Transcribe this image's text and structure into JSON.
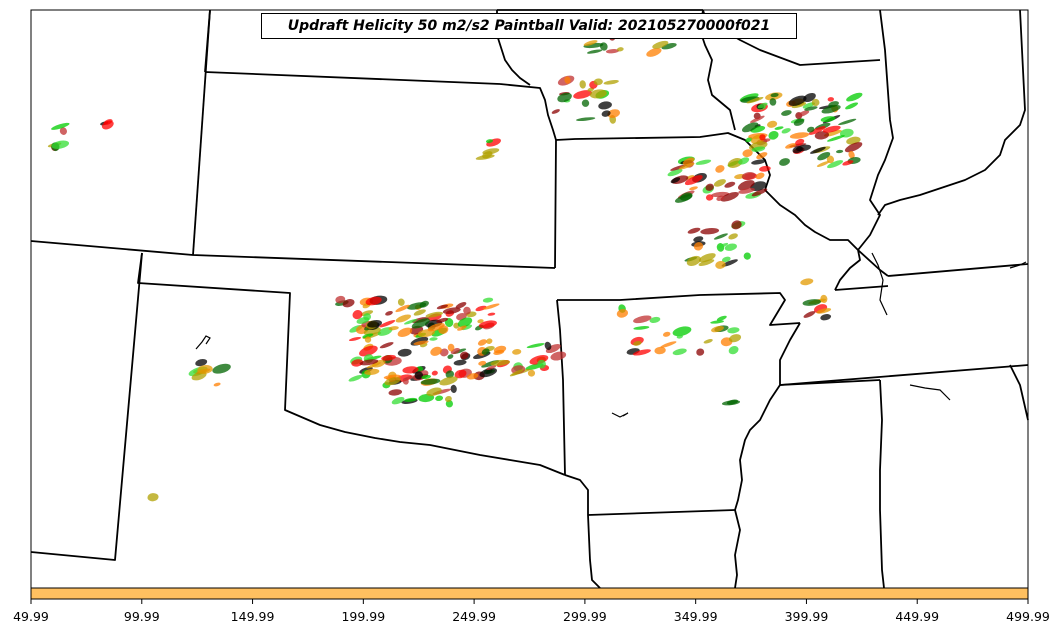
{
  "title": "Updraft Helicity 50 m2/s2 Paintball Valid: 202105270000f021",
  "x_axis": {
    "ticks": [
      {
        "value": 49.99,
        "label": "49.99"
      },
      {
        "value": 99.99,
        "label": "99.99"
      },
      {
        "value": 149.99,
        "label": "149.99"
      },
      {
        "value": 199.99,
        "label": "199.99"
      },
      {
        "value": 249.99,
        "label": "249.99"
      },
      {
        "value": 299.99,
        "label": "299.99"
      },
      {
        "value": 349.99,
        "label": "349.99"
      },
      {
        "value": 399.99,
        "label": "399.99"
      },
      {
        "value": 449.99,
        "label": "449.99"
      },
      {
        "value": 499.99,
        "label": "499.99"
      }
    ],
    "range": [
      49.99,
      499.99
    ]
  },
  "colorbar_color": "#ffc060",
  "paintball_colors": [
    "#ff0000",
    "#ff7f00",
    "#00cc00",
    "#006400",
    "#8b0000",
    "#b0a000",
    "#e39a00",
    "#000000",
    "#c03030",
    "#33dd33"
  ]
}
